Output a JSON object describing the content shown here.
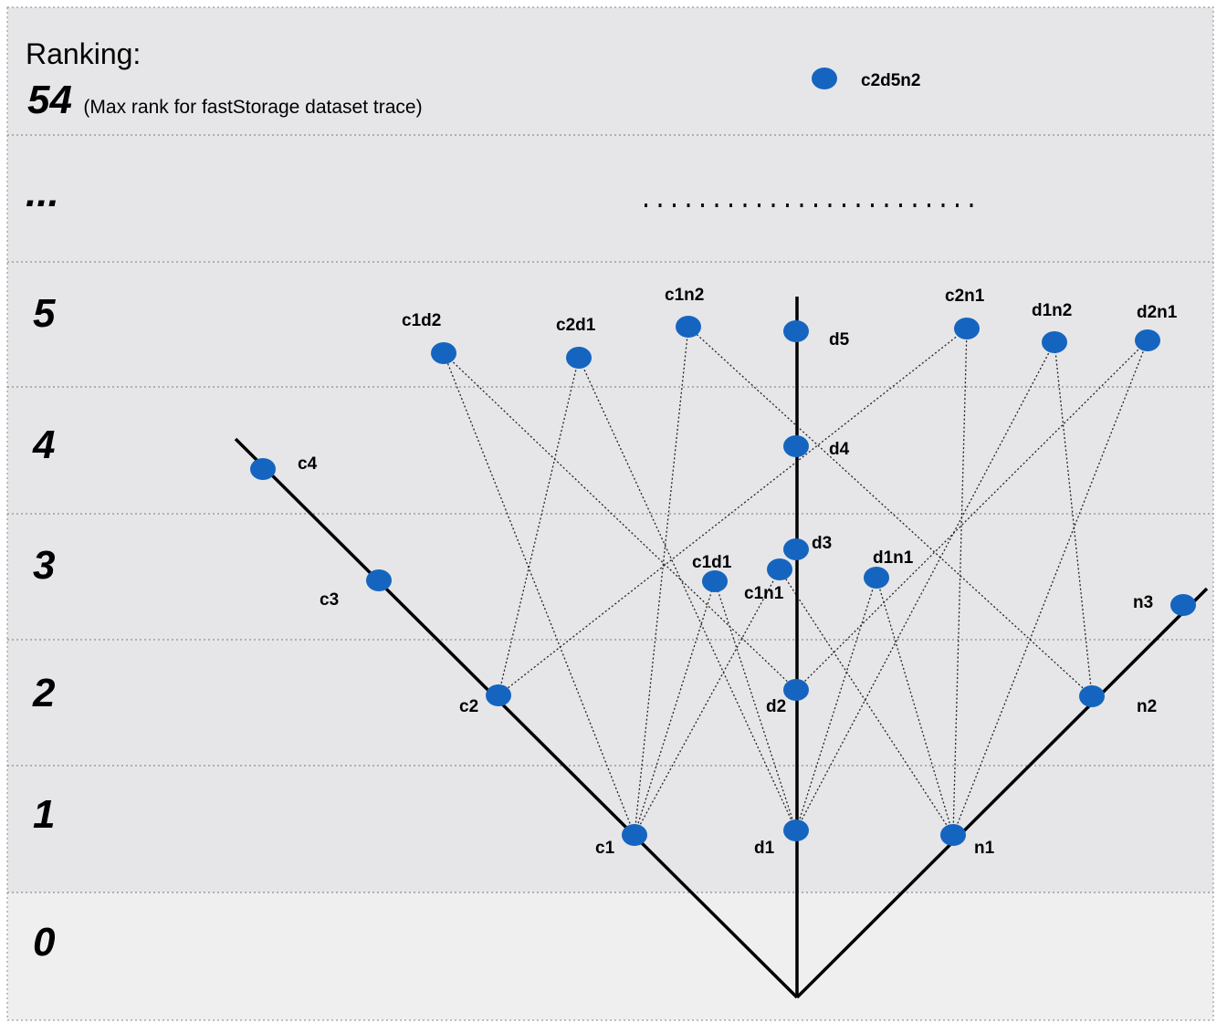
{
  "title": {
    "ranking_label": "Ranking:",
    "max_rank": "54",
    "note_prefix": "(Max rank for ",
    "note_emphasis": "fastStorage",
    "note_suffix": " dataset trace)"
  },
  "rank_labels": [
    "0",
    "1",
    "2",
    "3",
    "4",
    "5",
    "...",
    "54"
  ],
  "colors": {
    "node": "#1565c0",
    "band": "#e6e6e8",
    "band_bottom": "#efeff0",
    "axis": "#000000"
  },
  "nodes": [
    {
      "id": "c1",
      "label": "c1"
    },
    {
      "id": "c2",
      "label": "c2"
    },
    {
      "id": "c3",
      "label": "c3"
    },
    {
      "id": "c4",
      "label": "c4"
    },
    {
      "id": "d1",
      "label": "d1"
    },
    {
      "id": "d2",
      "label": "d2"
    },
    {
      "id": "d3",
      "label": "d3"
    },
    {
      "id": "d4",
      "label": "d4"
    },
    {
      "id": "d5",
      "label": "d5"
    },
    {
      "id": "n1",
      "label": "n1"
    },
    {
      "id": "n2",
      "label": "n2"
    },
    {
      "id": "n3",
      "label": "n3"
    },
    {
      "id": "c1d1",
      "label": "c1d1"
    },
    {
      "id": "c1n1",
      "label": "c1n1"
    },
    {
      "id": "d1n1",
      "label": "d1n1"
    },
    {
      "id": "c1d2",
      "label": "c1d2"
    },
    {
      "id": "c2d1",
      "label": "c2d1"
    },
    {
      "id": "c1n2",
      "label": "c1n2"
    },
    {
      "id": "c2n1",
      "label": "c2n1"
    },
    {
      "id": "d1n2",
      "label": "d1n2"
    },
    {
      "id": "d2n1",
      "label": "d2n1"
    },
    {
      "id": "c2d5n2",
      "label": "c2d5n2"
    }
  ],
  "edges": [
    [
      "c1",
      "c1d1"
    ],
    [
      "d1",
      "c1d1"
    ],
    [
      "c1",
      "c1n1"
    ],
    [
      "n1",
      "c1n1"
    ],
    [
      "d1",
      "d1n1"
    ],
    [
      "n1",
      "d1n1"
    ],
    [
      "c1",
      "c1d2"
    ],
    [
      "d2",
      "c1d2"
    ],
    [
      "c2",
      "c2d1"
    ],
    [
      "d1",
      "c2d1"
    ],
    [
      "c1",
      "c1n2"
    ],
    [
      "n2",
      "c1n2"
    ],
    [
      "c2",
      "c2n1"
    ],
    [
      "n1",
      "c2n1"
    ],
    [
      "d1",
      "d1n2"
    ],
    [
      "n2",
      "d1n2"
    ],
    [
      "d2",
      "d2n1"
    ],
    [
      "n1",
      "d2n1"
    ]
  ]
}
